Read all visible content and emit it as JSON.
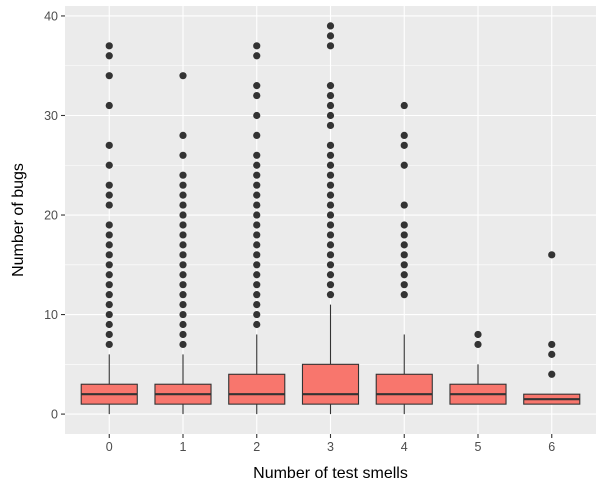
{
  "chart_data": {
    "type": "boxplot",
    "title": "",
    "xlabel": "Number of test smells",
    "ylabel": "Number of bugs",
    "ylim": [
      -2,
      41
    ],
    "yticks": [
      0,
      10,
      20,
      30,
      40
    ],
    "grid": true,
    "categories": [
      "0",
      "1",
      "2",
      "3",
      "4",
      "5",
      "6"
    ],
    "boxes": [
      {
        "category": "0",
        "whisker_low": 0,
        "q1": 1,
        "median": 2,
        "q3": 3,
        "whisker_high": 6,
        "outliers": [
          7,
          8,
          9,
          10,
          11,
          12,
          13,
          14,
          15,
          16,
          17,
          18,
          19,
          21,
          22,
          23,
          25,
          27,
          31,
          34,
          36,
          37
        ]
      },
      {
        "category": "1",
        "whisker_low": 0,
        "q1": 1,
        "median": 2,
        "q3": 3,
        "whisker_high": 6,
        "outliers": [
          7,
          8,
          9,
          10,
          11,
          12,
          13,
          14,
          15,
          16,
          17,
          18,
          19,
          20,
          21,
          22,
          23,
          24,
          26,
          28,
          34
        ]
      },
      {
        "category": "2",
        "whisker_low": 0,
        "q1": 1,
        "median": 2,
        "q3": 4,
        "whisker_high": 8,
        "outliers": [
          9,
          10,
          11,
          12,
          13,
          14,
          15,
          16,
          17,
          18,
          19,
          20,
          21,
          22,
          23,
          24,
          25,
          26,
          28,
          30,
          32,
          33,
          36,
          37
        ]
      },
      {
        "category": "3",
        "whisker_low": 0,
        "q1": 1,
        "median": 2,
        "q3": 5,
        "whisker_high": 11,
        "outliers": [
          12,
          13,
          14,
          15,
          16,
          17,
          18,
          19,
          20,
          21,
          22,
          23,
          24,
          25,
          26,
          27,
          29,
          30,
          31,
          32,
          33,
          37,
          38,
          39
        ]
      },
      {
        "category": "4",
        "whisker_low": 0,
        "q1": 1,
        "median": 2,
        "q3": 4,
        "whisker_high": 8,
        "outliers": [
          12,
          13,
          14,
          15,
          16,
          17,
          18,
          19,
          21,
          25,
          27,
          28,
          31
        ]
      },
      {
        "category": "5",
        "whisker_low": 1,
        "q1": 1,
        "median": 2,
        "q3": 3,
        "whisker_high": 5,
        "outliers": [
          7,
          8
        ]
      },
      {
        "category": "6",
        "whisker_low": 1,
        "q1": 1,
        "median": 1.5,
        "q3": 2,
        "whisker_high": 2,
        "outliers": [
          4,
          6,
          7,
          16
        ]
      }
    ]
  },
  "colors": {
    "panel_background": "#ebebeb",
    "grid_major": "#ffffff",
    "box_fill": "#f8766d",
    "box_stroke": "#333333",
    "outlier": "#333333",
    "tick_text": "#4d4d4d",
    "axis_title": "#000000"
  }
}
